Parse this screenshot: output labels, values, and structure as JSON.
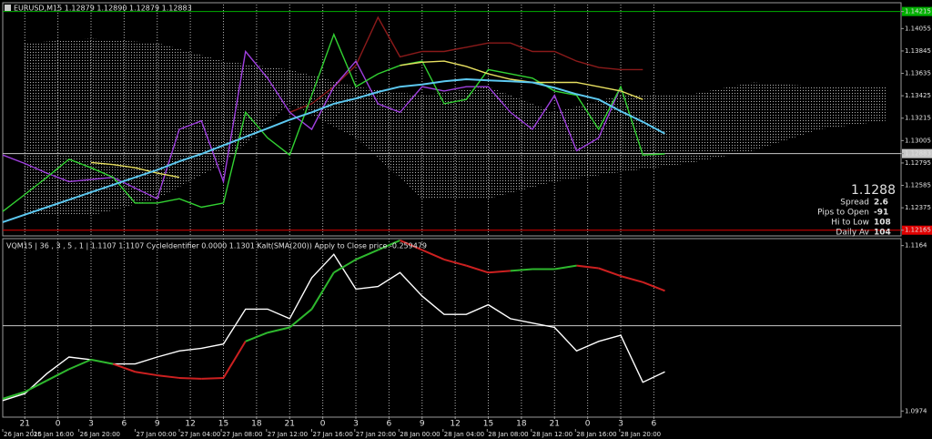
{
  "chart_data": [
    {
      "type": "line",
      "title": "EURUSD,M15  1.12879 1.12890 1.12879 1.12883",
      "x": [
        -2,
        0,
        2,
        4,
        6,
        8,
        10,
        12,
        14,
        16,
        18,
        20,
        22,
        24,
        26,
        28,
        30,
        32,
        34,
        36,
        38,
        40,
        42,
        44,
        46,
        48,
        50,
        52,
        54,
        56,
        58
      ],
      "xlim": [
        -2,
        79.4
      ],
      "ylim": [
        1.1212,
        1.1428
      ],
      "yticks": [
        1.14215,
        1.14055,
        1.13845,
        1.13635,
        1.13425,
        1.13215,
        1.13005,
        1.12883,
        1.12795,
        1.12585,
        1.12375,
        1.12165
      ],
      "level_lines": [
        {
          "value": 1.14215,
          "color": "#00b000"
        },
        {
          "value": 1.12883,
          "color": "#c8c8c8"
        },
        {
          "value": 1.12165,
          "color": "#e00000"
        }
      ],
      "cloud": {
        "color": "#b4b4b4",
        "x": [
          0,
          6,
          12,
          18,
          24,
          30,
          36,
          42,
          48,
          54,
          60,
          66,
          72,
          78
        ],
        "upper": [
          1.1392,
          1.1396,
          1.1392,
          1.1375,
          1.1367,
          1.1351,
          1.1343,
          1.1351,
          1.1327,
          1.1343,
          1.1343,
          1.1355,
          1.1351,
          1.1351
        ],
        "lower": [
          1.123,
          1.123,
          1.1246,
          1.1279,
          1.1335,
          1.1303,
          1.1246,
          1.1246,
          1.1262,
          1.1271,
          1.1279,
          1.1291,
          1.1311,
          1.1319
        ]
      },
      "series": [
        {
          "color": "#8a1a1a",
          "values": [
            null,
            null,
            null,
            null,
            null,
            null,
            null,
            null,
            null,
            null,
            null,
            null,
            null,
            1.1327,
            1.1335,
            1.1351,
            1.1371,
            1.1416,
            1.1379,
            1.1384,
            1.1384,
            1.1388,
            1.1392,
            1.1392,
            1.1384,
            1.1384,
            1.1375,
            1.1369,
            1.1367,
            1.1367,
            null
          ]
        },
        {
          "color": "#a040e0",
          "values": [
            1.1287,
            1.1279,
            1.127,
            1.1262,
            1.1264,
            1.1266,
            1.1256,
            1.1246,
            1.1311,
            1.1319,
            1.1262,
            1.1384,
            1.1359,
            1.1327,
            1.1311,
            1.1351,
            1.1375,
            1.1335,
            1.1327,
            1.1351,
            1.1347,
            1.1351,
            1.1351,
            1.1327,
            1.1311,
            1.1343,
            1.1291,
            1.1303,
            1.1351,
            null,
            null
          ]
        },
        {
          "color": "#32d232",
          "values": [
            1.1234,
            1.125,
            1.1266,
            1.1283,
            1.1275,
            1.1266,
            1.1242,
            1.1242,
            1.1246,
            1.1238,
            1.1242,
            1.1327,
            1.1303,
            1.1287,
            1.1343,
            1.14,
            1.1351,
            1.1363,
            1.1371,
            1.1375,
            1.1335,
            1.1339,
            1.1367,
            1.1363,
            1.1359,
            1.1347,
            1.1343,
            1.1311,
            1.1351,
            1.1287,
            1.1288
          ]
        },
        {
          "color": "#e8e060",
          "values": [
            null,
            null,
            null,
            null,
            1.128,
            1.1278,
            1.1275,
            1.127,
            1.1266,
            null,
            null,
            null,
            null,
            null,
            null,
            null,
            null,
            null,
            1.1371,
            1.1374,
            1.1375,
            1.137,
            1.1363,
            1.1358,
            1.1355,
            1.1355,
            1.1355,
            1.1351,
            1.1347,
            1.1339,
            null
          ]
        },
        {
          "color": "#5cc8f0",
          "values": [
            1.1224,
            1.1231,
            1.1238,
            1.1245,
            1.1252,
            1.1259,
            1.1266,
            1.1273,
            1.1281,
            1.1288,
            1.1296,
            1.1304,
            1.1312,
            1.132,
            1.1327,
            1.1335,
            1.134,
            1.1346,
            1.1351,
            1.1353,
            1.1356,
            1.1358,
            1.1357,
            1.1356,
            1.1355,
            1.135,
            1.1344,
            1.1339,
            1.1328,
            1.1318,
            1.1307
          ]
        }
      ],
      "info": {
        "price": 1.1288,
        "price_color": "#32d232",
        "rows": [
          {
            "label": "Spread",
            "value": 2.6,
            "color": "#20c0a0",
            "value_color": "#f0f040"
          },
          {
            "label": "Pips to Open",
            "value": -91,
            "color": "#30b8e8",
            "value_color": "#e02020"
          },
          {
            "label": "Hi to Low",
            "value": 108,
            "color": "#3a6cff",
            "value_color": "#3a6cff"
          },
          {
            "label": "Daily Av",
            "value": 104,
            "color": "#e02020",
            "value_color": "#e02020"
          }
        ]
      }
    },
    {
      "type": "line",
      "title": "VQM15 | 36 , 3 , 5 , 1 | 1.1107 1.1107  CycleIdentifier 0.0000 1.1301  Kalt(SMA(200)) Apply to Close price -0.259479",
      "x": [
        -2,
        0,
        2,
        4,
        6,
        8,
        10,
        12,
        14,
        16,
        18,
        20,
        22,
        24,
        26,
        28,
        30,
        32,
        34,
        36,
        38,
        40,
        42,
        44,
        46,
        48,
        50,
        52,
        54,
        56,
        58
      ],
      "xlim": [
        -2,
        79.4
      ],
      "ylim": [
        1.0968,
        1.1172
      ],
      "yticks": [
        1.1164,
        1.0974
      ],
      "level_lines": [
        {
          "value": 1.1072,
          "color": "#c8c8c8"
        }
      ],
      "grid": true,
      "xticks": [
        {
          "value": 0,
          "label": "21"
        },
        {
          "value": 3,
          "label": "0"
        },
        {
          "value": 6,
          "label": "3"
        },
        {
          "value": 9,
          "label": "6"
        },
        {
          "value": 12,
          "label": "9"
        },
        {
          "value": 15,
          "label": "12"
        },
        {
          "value": 18,
          "label": "15"
        },
        {
          "value": 21,
          "label": "18"
        },
        {
          "value": 24,
          "label": "21"
        },
        {
          "value": 27,
          "label": "0"
        },
        {
          "value": 30,
          "label": "3"
        },
        {
          "value": 33,
          "label": "6"
        },
        {
          "value": 36,
          "label": "9"
        },
        {
          "value": 39,
          "label": "12"
        },
        {
          "value": 42,
          "label": "15"
        },
        {
          "value": 45,
          "label": "18"
        },
        {
          "value": 48,
          "label": "21"
        },
        {
          "value": 51,
          "label": "0"
        },
        {
          "value": 54,
          "label": "3"
        },
        {
          "value": 57,
          "label": "6"
        }
      ],
      "x_date_ticks": [
        {
          "value": -2,
          "label": "26 Jan 2015"
        },
        {
          "value": 0.7,
          "label": "26 Jan 16:00"
        },
        {
          "value": 4.9,
          "label": "26 Jan 20:00"
        },
        {
          "value": 10,
          "label": "27 Jan 00:00"
        },
        {
          "value": 14,
          "label": "27 Jan 04:00"
        },
        {
          "value": 17.8,
          "label": "27 Jan 08:00"
        },
        {
          "value": 21.9,
          "label": "27 Jan 12:00"
        },
        {
          "value": 26,
          "label": "27 Jan 16:00"
        },
        {
          "value": 29.9,
          "label": "27 Jan 20:00"
        },
        {
          "value": 33.9,
          "label": "28 Jan 00:00"
        },
        {
          "value": 37.9,
          "label": "28 Jan 04:00"
        },
        {
          "value": 41.9,
          "label": "28 Jan 08:00"
        },
        {
          "value": 45.9,
          "label": "28 Jan 12:00"
        },
        {
          "value": 49.9,
          "label": "28 Jan 16:00"
        },
        {
          "value": 53.9,
          "label": "28 Jan 20:00"
        }
      ],
      "series": [
        {
          "color": "#ffffff",
          "values": [
            1.0986,
            1.0994,
            1.1017,
            1.1036,
            1.1033,
            1.1028,
            1.1028,
            1.1036,
            1.1043,
            1.1046,
            1.1051,
            1.1091,
            1.1091,
            1.108,
            1.1127,
            1.1154,
            1.1114,
            1.1117,
            1.1133,
            1.1106,
            1.1085,
            1.1085,
            1.1096,
            1.108,
            1.1075,
            1.107,
            1.1043,
            1.1054,
            1.1061,
            1.1007,
            1.1019
          ]
        },
        {
          "values": [
            1.0988,
            1.0996,
            1.1009,
            1.1022,
            1.1033,
            1.1028,
            1.1019,
            1.1015,
            1.1012,
            1.1011,
            1.1012,
            1.1054,
            1.1064,
            1.107,
            1.1091,
            1.1133,
            1.1148,
            1.1159,
            1.117,
            1.1159,
            1.1148,
            1.1141,
            1.1133,
            1.1135,
            1.1137,
            1.1137,
            1.1141,
            1.1138,
            1.1129,
            1.1122,
            1.1112
          ],
          "segment_colors": [
            "#2eb82e",
            "#2eb82e",
            "#2eb82e",
            "#2eb82e",
            "#2eb82e",
            "#cc2020",
            "#cc2020",
            "#cc2020",
            "#cc2020",
            "#cc2020",
            "#cc2020",
            "#2eb82e",
            "#2eb82e",
            "#2eb82e",
            "#2eb82e",
            "#2eb82e",
            "#2eb82e",
            "#2eb82e",
            "#cc2020",
            "#cc2020",
            "#cc2020",
            "#cc2020",
            "#cc2020",
            "#2eb82e",
            "#2eb82e",
            "#2eb82e",
            "#cc2020",
            "#cc2020",
            "#cc2020",
            "#cc2020"
          ]
        }
      ]
    }
  ]
}
